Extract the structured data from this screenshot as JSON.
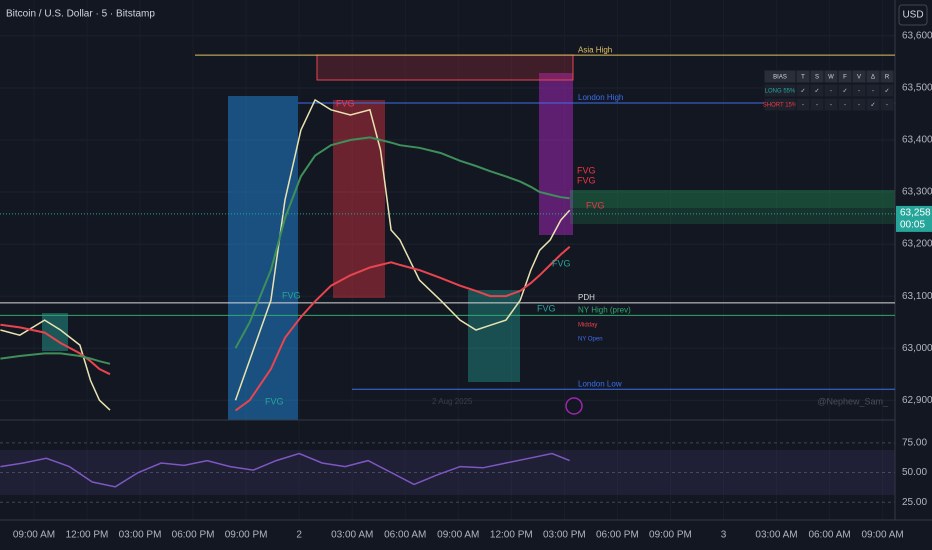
{
  "header": {
    "title": "Bitcoin / U.S. Dollar · 5 · Bitstamp",
    "currency": "USD",
    "watermark": "@Nephew_Sam_",
    "date": "2 Aug 2025"
  },
  "bias_table": {
    "header": [
      "BIAS",
      "T",
      "S",
      "W",
      "F",
      "V",
      "Δ",
      "R"
    ],
    "rows": [
      [
        "LONG 55%",
        "✓",
        "✓",
        "-",
        "✓",
        "-",
        "-",
        "✓"
      ],
      [
        "SHORT 15%",
        "-",
        "-",
        "-",
        "-",
        "-",
        "✓",
        "-"
      ]
    ]
  },
  "annotations": [
    "FVG",
    "FVG",
    "FVG",
    "FVG",
    "FVG",
    "FVG",
    "FVG",
    "FVG",
    "Midday",
    "NY Open"
  ],
  "chart_data": [
    {
      "type": "line",
      "title": "Bitcoin / U.S. Dollar",
      "x": [
        -1.9,
        -0.8,
        0.6,
        1.5,
        2.6,
        3.2,
        3.7,
        4.3,
        8,
        11.4,
        12.2,
        13.4,
        14.2,
        15.1,
        15.9,
        16.8,
        17.9,
        19.0,
        19.6,
        20.2,
        20.7,
        21.8,
        23.0,
        24.1,
        25.0,
        25.8,
        26.7,
        27.5,
        28.1,
        28.6,
        29.2,
        29.8,
        30.3
      ],
      "series": [
        {
          "name": "Price",
          "color": "#e8e3b0",
          "values": [
            63035,
            63025,
            63054,
            63035,
            63006,
            62938,
            62900,
            62881,
            null,
            62900,
            62977,
            63092,
            63285,
            63419,
            63477,
            63458,
            63448,
            63458,
            63381,
            63227,
            63208,
            63131,
            63092,
            63054,
            63035,
            63044,
            63054,
            63092,
            63150,
            63188,
            63208,
            63246,
            63265
          ]
        },
        {
          "name": "Slow MA",
          "color": "#e8454f",
          "values": [
            63045,
            63040,
            63030,
            63010,
            62990,
            62975,
            62960,
            62950,
            null,
            62880,
            62900,
            62960,
            63020,
            63060,
            63090,
            63120,
            63140,
            63155,
            63160,
            63165,
            63160,
            63150,
            63135,
            63120,
            63110,
            63100,
            63100,
            63110,
            63125,
            63140,
            63160,
            63180,
            63195
          ]
        },
        {
          "name": "Band",
          "color": "#3f8f5a",
          "values": [
            62980,
            62985,
            62990,
            62990,
            62985,
            62980,
            62975,
            62970,
            null,
            63000,
            63050,
            63150,
            63250,
            63330,
            63370,
            63390,
            63400,
            63405,
            63400,
            63395,
            63390,
            63385,
            63375,
            63360,
            63350,
            63340,
            63330,
            63320,
            63310,
            63300,
            63295,
            63290,
            63288
          ]
        }
      ],
      "xlim": [
        -1.92,
        48.7
      ],
      "xticks": [
        {
          "value": 0,
          "label": "09:00 AM"
        },
        {
          "value": 3,
          "label": "12:00 PM"
        },
        {
          "value": 6,
          "label": "03:00 PM"
        },
        {
          "value": 9,
          "label": "06:00 PM"
        },
        {
          "value": 12,
          "label": "09:00 PM"
        },
        {
          "value": 15,
          "label": "2"
        },
        {
          "value": 18,
          "label": "03:00 AM"
        },
        {
          "value": 21,
          "label": "06:00 AM"
        },
        {
          "value": 24,
          "label": "09:00 AM"
        },
        {
          "value": 27,
          "label": "12:00 PM"
        },
        {
          "value": 30,
          "label": "03:00 PM"
        },
        {
          "value": 33,
          "label": "06:00 PM"
        },
        {
          "value": 36,
          "label": "09:00 PM"
        },
        {
          "value": 39,
          "label": "3"
        },
        {
          "value": 42,
          "label": "03:00 AM"
        },
        {
          "value": 45,
          "label": "06:00 AM"
        },
        {
          "value": 48,
          "label": "09:00 AM"
        }
      ],
      "ylim": [
        62862,
        63669
      ],
      "yticks": [
        {
          "value": 62900,
          "label": "62,900"
        },
        {
          "value": 63000,
          "label": "63,000"
        },
        {
          "value": 63100,
          "label": "63,100"
        },
        {
          "value": 63200,
          "label": "63,200"
        },
        {
          "value": 63300,
          "label": "63,300"
        },
        {
          "value": 63400,
          "label": "63,400"
        },
        {
          "value": 63500,
          "label": "63,500"
        },
        {
          "value": 63600,
          "label": "63,600"
        }
      ],
      "last_price": {
        "value": 63258,
        "label": "63,258"
      },
      "countdown": "00:05",
      "levels": [
        {
          "label": "Asia High",
          "value": 63563,
          "color": "#e0c060"
        },
        {
          "label": "London High",
          "value": 63471,
          "color": "#3d6ee8"
        },
        {
          "label": "PDH",
          "value": 63087,
          "color": "#d8d8d8"
        },
        {
          "label": "NY High (prev)",
          "value": 63063,
          "color": "#2fa86b"
        },
        {
          "label": "London Low",
          "value": 62921,
          "color": "#3d6ee8"
        }
      ],
      "grid": true
    },
    {
      "type": "line",
      "title": "RSI",
      "x": [
        -1.9,
        -0.6,
        0.7,
        2,
        3.3,
        4.6,
        5.9,
        7.2,
        8.5,
        9.8,
        11.1,
        12.4,
        13.7,
        15,
        16.3,
        17.6,
        18.9,
        20.2,
        21.5,
        22.8,
        24.1,
        25.4,
        26.7,
        28,
        29.3,
        30.3
      ],
      "series": [
        {
          "name": "RSI",
          "color": "#7e57c2",
          "values": [
            55,
            58,
            62,
            55,
            42,
            38,
            50,
            58,
            56,
            60,
            55,
            52,
            60,
            66,
            58,
            55,
            60,
            50,
            40,
            48,
            55,
            54,
            58,
            62,
            66,
            60
          ]
        }
      ],
      "xlim": [
        -1.92,
        48.7
      ],
      "ylim": [
        10,
        90
      ],
      "yticks": [
        {
          "value": 25,
          "label": "25.00"
        },
        {
          "value": 50,
          "label": "50.00"
        },
        {
          "value": 75,
          "label": "75.00"
        }
      ]
    }
  ]
}
